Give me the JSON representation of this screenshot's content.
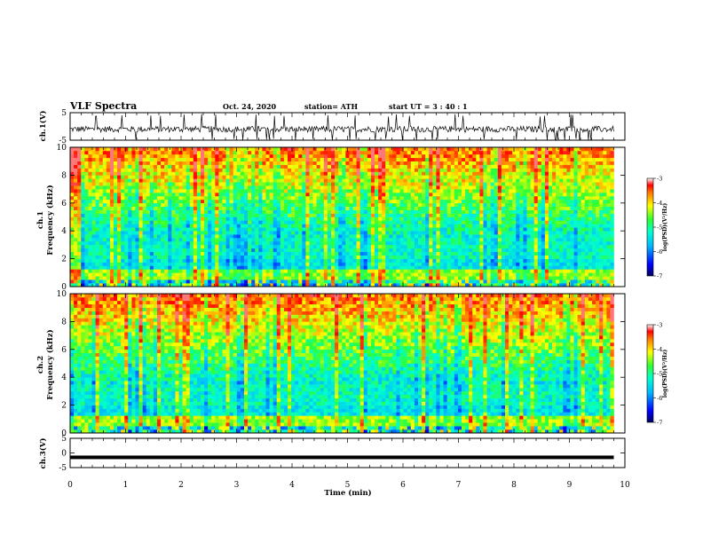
{
  "header": {
    "title": "VLF Spectra",
    "date": "Oct. 24, 2020",
    "station": "station= ATH",
    "start_ut": "start UT =  3 : 40 : 1"
  },
  "chart_data": [
    {
      "type": "line",
      "panel": "ch1-waveform",
      "ylabel": "ch.1(V)",
      "ylim": [
        -5,
        5
      ],
      "yticks": [
        "5",
        "-5"
      ],
      "xlim": [
        0,
        10
      ],
      "x_extent_min": [
        0,
        9.8
      ],
      "data_summary": "noisy waveform, mostly between about -2 and 0 V with spikes to about +4 and -5 V"
    },
    {
      "type": "heatmap",
      "panel": "ch1-spectrogram",
      "ylabel_line1": "ch.1",
      "ylabel_line2": "Frequency (kHz)",
      "ylim": [
        0,
        10
      ],
      "yticks": [
        "0",
        "2",
        "4",
        "6",
        "8",
        "10"
      ],
      "xlim": [
        0,
        10
      ],
      "colorbar": {
        "label": "log(PSD)(V²/Hz)",
        "range": [
          -7,
          -3
        ],
        "ticks": [
          "-3",
          "-4",
          "-5",
          "-6",
          "-7"
        ]
      }
    },
    {
      "type": "heatmap",
      "panel": "ch2-spectrogram",
      "ylabel_line1": "ch.2",
      "ylabel_line2": "Frequency (kHz)",
      "ylim": [
        0,
        10
      ],
      "yticks": [
        "0",
        "2",
        "4",
        "6",
        "8",
        "10"
      ],
      "xlim": [
        0,
        10
      ],
      "colorbar": {
        "label": "log(PSD)(V²/Hz)",
        "range": [
          -7,
          -3
        ],
        "ticks": [
          "-3",
          "-4",
          "-5",
          "-6",
          "-7"
        ]
      }
    },
    {
      "type": "line",
      "panel": "ch3-waveform",
      "ylabel": "ch.3(V)",
      "ylim": [
        -5,
        5
      ],
      "yticks": [
        "5",
        "0",
        "-5"
      ],
      "xlim": [
        0,
        10
      ],
      "data_summary": "nearly flat trace at about -1.5 V"
    }
  ],
  "xaxis": {
    "label": "Time (min)",
    "ticks": [
      "0",
      "1",
      "2",
      "3",
      "4",
      "5",
      "6",
      "7",
      "8",
      "9",
      "10"
    ]
  },
  "colors": {
    "ink": "#000000",
    "background": "#ffffff"
  }
}
